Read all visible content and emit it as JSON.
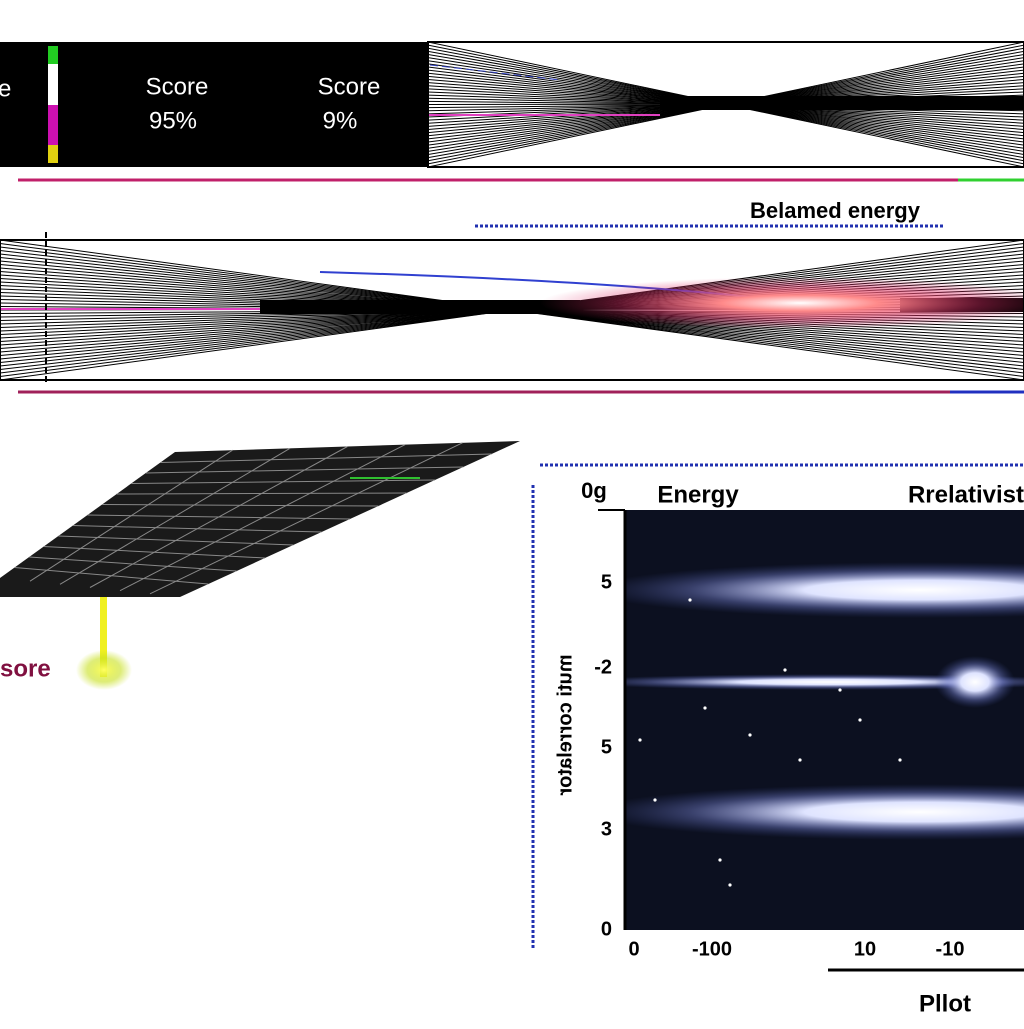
{
  "top_panel": {
    "partial_label": "e",
    "scores": [
      {
        "label": "Score",
        "value": "95%"
      },
      {
        "label": "Score",
        "value": "9%"
      }
    ]
  },
  "band_title": "Belamed energy",
  "side_label": "sore",
  "plot": {
    "corner_label": "0g",
    "title_left": "Energy",
    "title_right": "Rrelativist",
    "y_axis_label": "muti correlator",
    "y_labels": [
      "5",
      "-2",
      "5",
      "3",
      "0"
    ],
    "x_labels": [
      "0",
      "-100",
      "10",
      "-10"
    ],
    "caption": "Pllot"
  }
}
